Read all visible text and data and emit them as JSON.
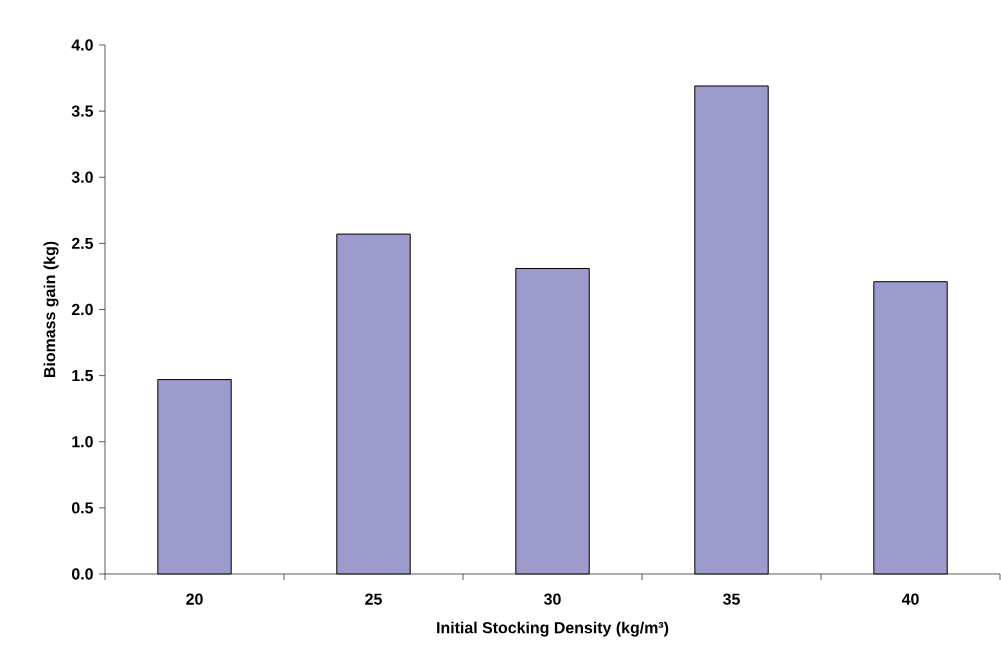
{
  "chart_data": {
    "type": "bar",
    "xlabel": "Initial Stocking Density (kg/m³)",
    "ylabel": "Biomass gain (kg)",
    "categories": [
      "20",
      "25",
      "30",
      "35",
      "40"
    ],
    "values": [
      1.47,
      2.57,
      2.31,
      3.69,
      2.21
    ],
    "color": "#9d9acc",
    "ylim": [
      0,
      4
    ],
    "yticks": [
      {
        "value": 0,
        "label": "0.0"
      },
      {
        "value": 0.5,
        "label": "0.5"
      },
      {
        "value": 1,
        "label": "1.0"
      },
      {
        "value": 1.5,
        "label": "1.5"
      },
      {
        "value": 2,
        "label": "2.0"
      },
      {
        "value": 2.5,
        "label": "2.5"
      },
      {
        "value": 3,
        "label": "3.0"
      },
      {
        "value": 3.5,
        "label": "3.5"
      },
      {
        "value": 4,
        "label": "4.0"
      }
    ]
  }
}
